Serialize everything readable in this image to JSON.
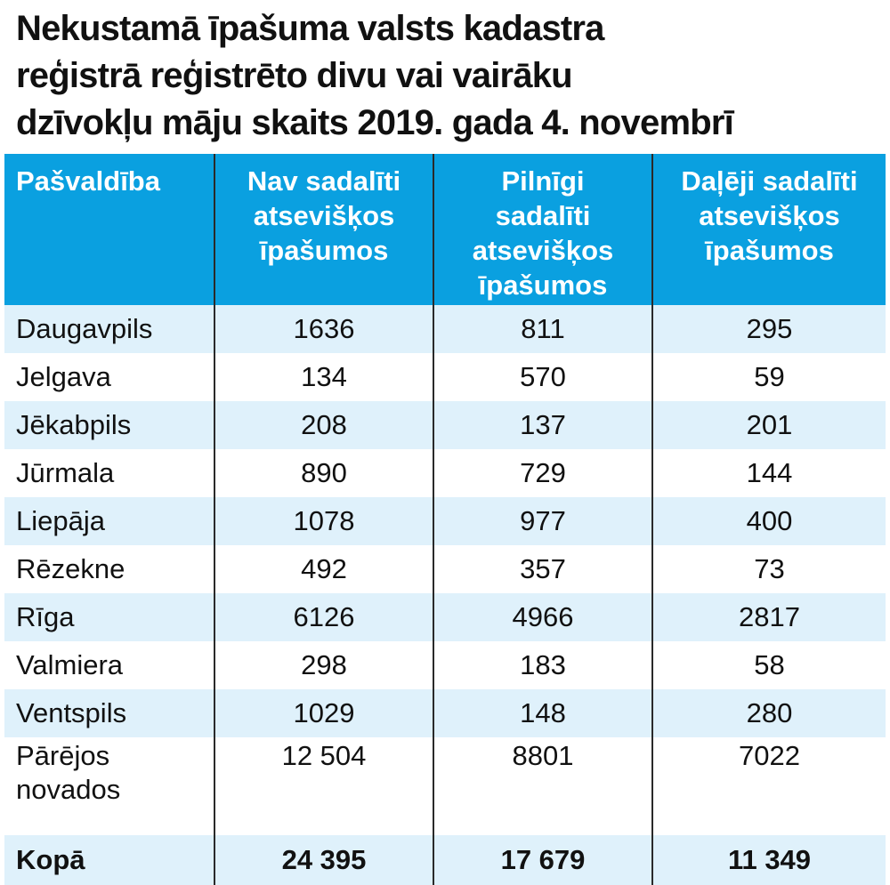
{
  "chart_data": {
    "type": "table",
    "title": [
      "Nekustamā īpašuma valsts kadastra",
      "reģistrā reģistrēto divu vai vairāku",
      "dzīvokļu māju skaits 2019. gada 4. novembrī"
    ],
    "columns": [
      [
        "Pašvaldība"
      ],
      [
        "Nav sadalīti",
        "atsevišķos",
        "īpašumos"
      ],
      [
        "Pilnīgi",
        "sadalīti",
        "atsevišķos",
        "īpašumos"
      ],
      [
        "Daļēji sadalīti",
        "atsevišķos",
        "īpašumos"
      ]
    ],
    "rows": [
      {
        "name": [
          "Daugavpils"
        ],
        "values": [
          "1636",
          "811",
          "295"
        ]
      },
      {
        "name": [
          "Jelgava"
        ],
        "values": [
          "134",
          "570",
          "59"
        ]
      },
      {
        "name": [
          "Jēkabpils"
        ],
        "values": [
          "208",
          "137",
          "201"
        ]
      },
      {
        "name": [
          "Jūrmala"
        ],
        "values": [
          "890",
          "729",
          "144"
        ]
      },
      {
        "name": [
          "Liepāja"
        ],
        "values": [
          "1078",
          "977",
          "400"
        ]
      },
      {
        "name": [
          "Rēzekne"
        ],
        "values": [
          "492",
          "357",
          "73"
        ]
      },
      {
        "name": [
          "Rīga"
        ],
        "values": [
          "6126",
          "4966",
          "2817"
        ]
      },
      {
        "name": [
          "Valmiera"
        ],
        "values": [
          "298",
          "183",
          "58"
        ]
      },
      {
        "name": [
          "Ventspils"
        ],
        "values": [
          "1029",
          "148",
          "280"
        ]
      },
      {
        "name": [
          "Pārējos",
          "novados"
        ],
        "values": [
          "12 504",
          "8801",
          "7022"
        ]
      }
    ],
    "total": {
      "name": "Kopā",
      "values": [
        "24 395",
        "17 679",
        "11 349"
      ]
    }
  },
  "colors": {
    "header_background": "#0aa0e0",
    "header_text": "#ffffff",
    "row_stripe": "#dff1fb",
    "row_plain": "#ffffff",
    "column_divider": "#2a2a2a"
  }
}
